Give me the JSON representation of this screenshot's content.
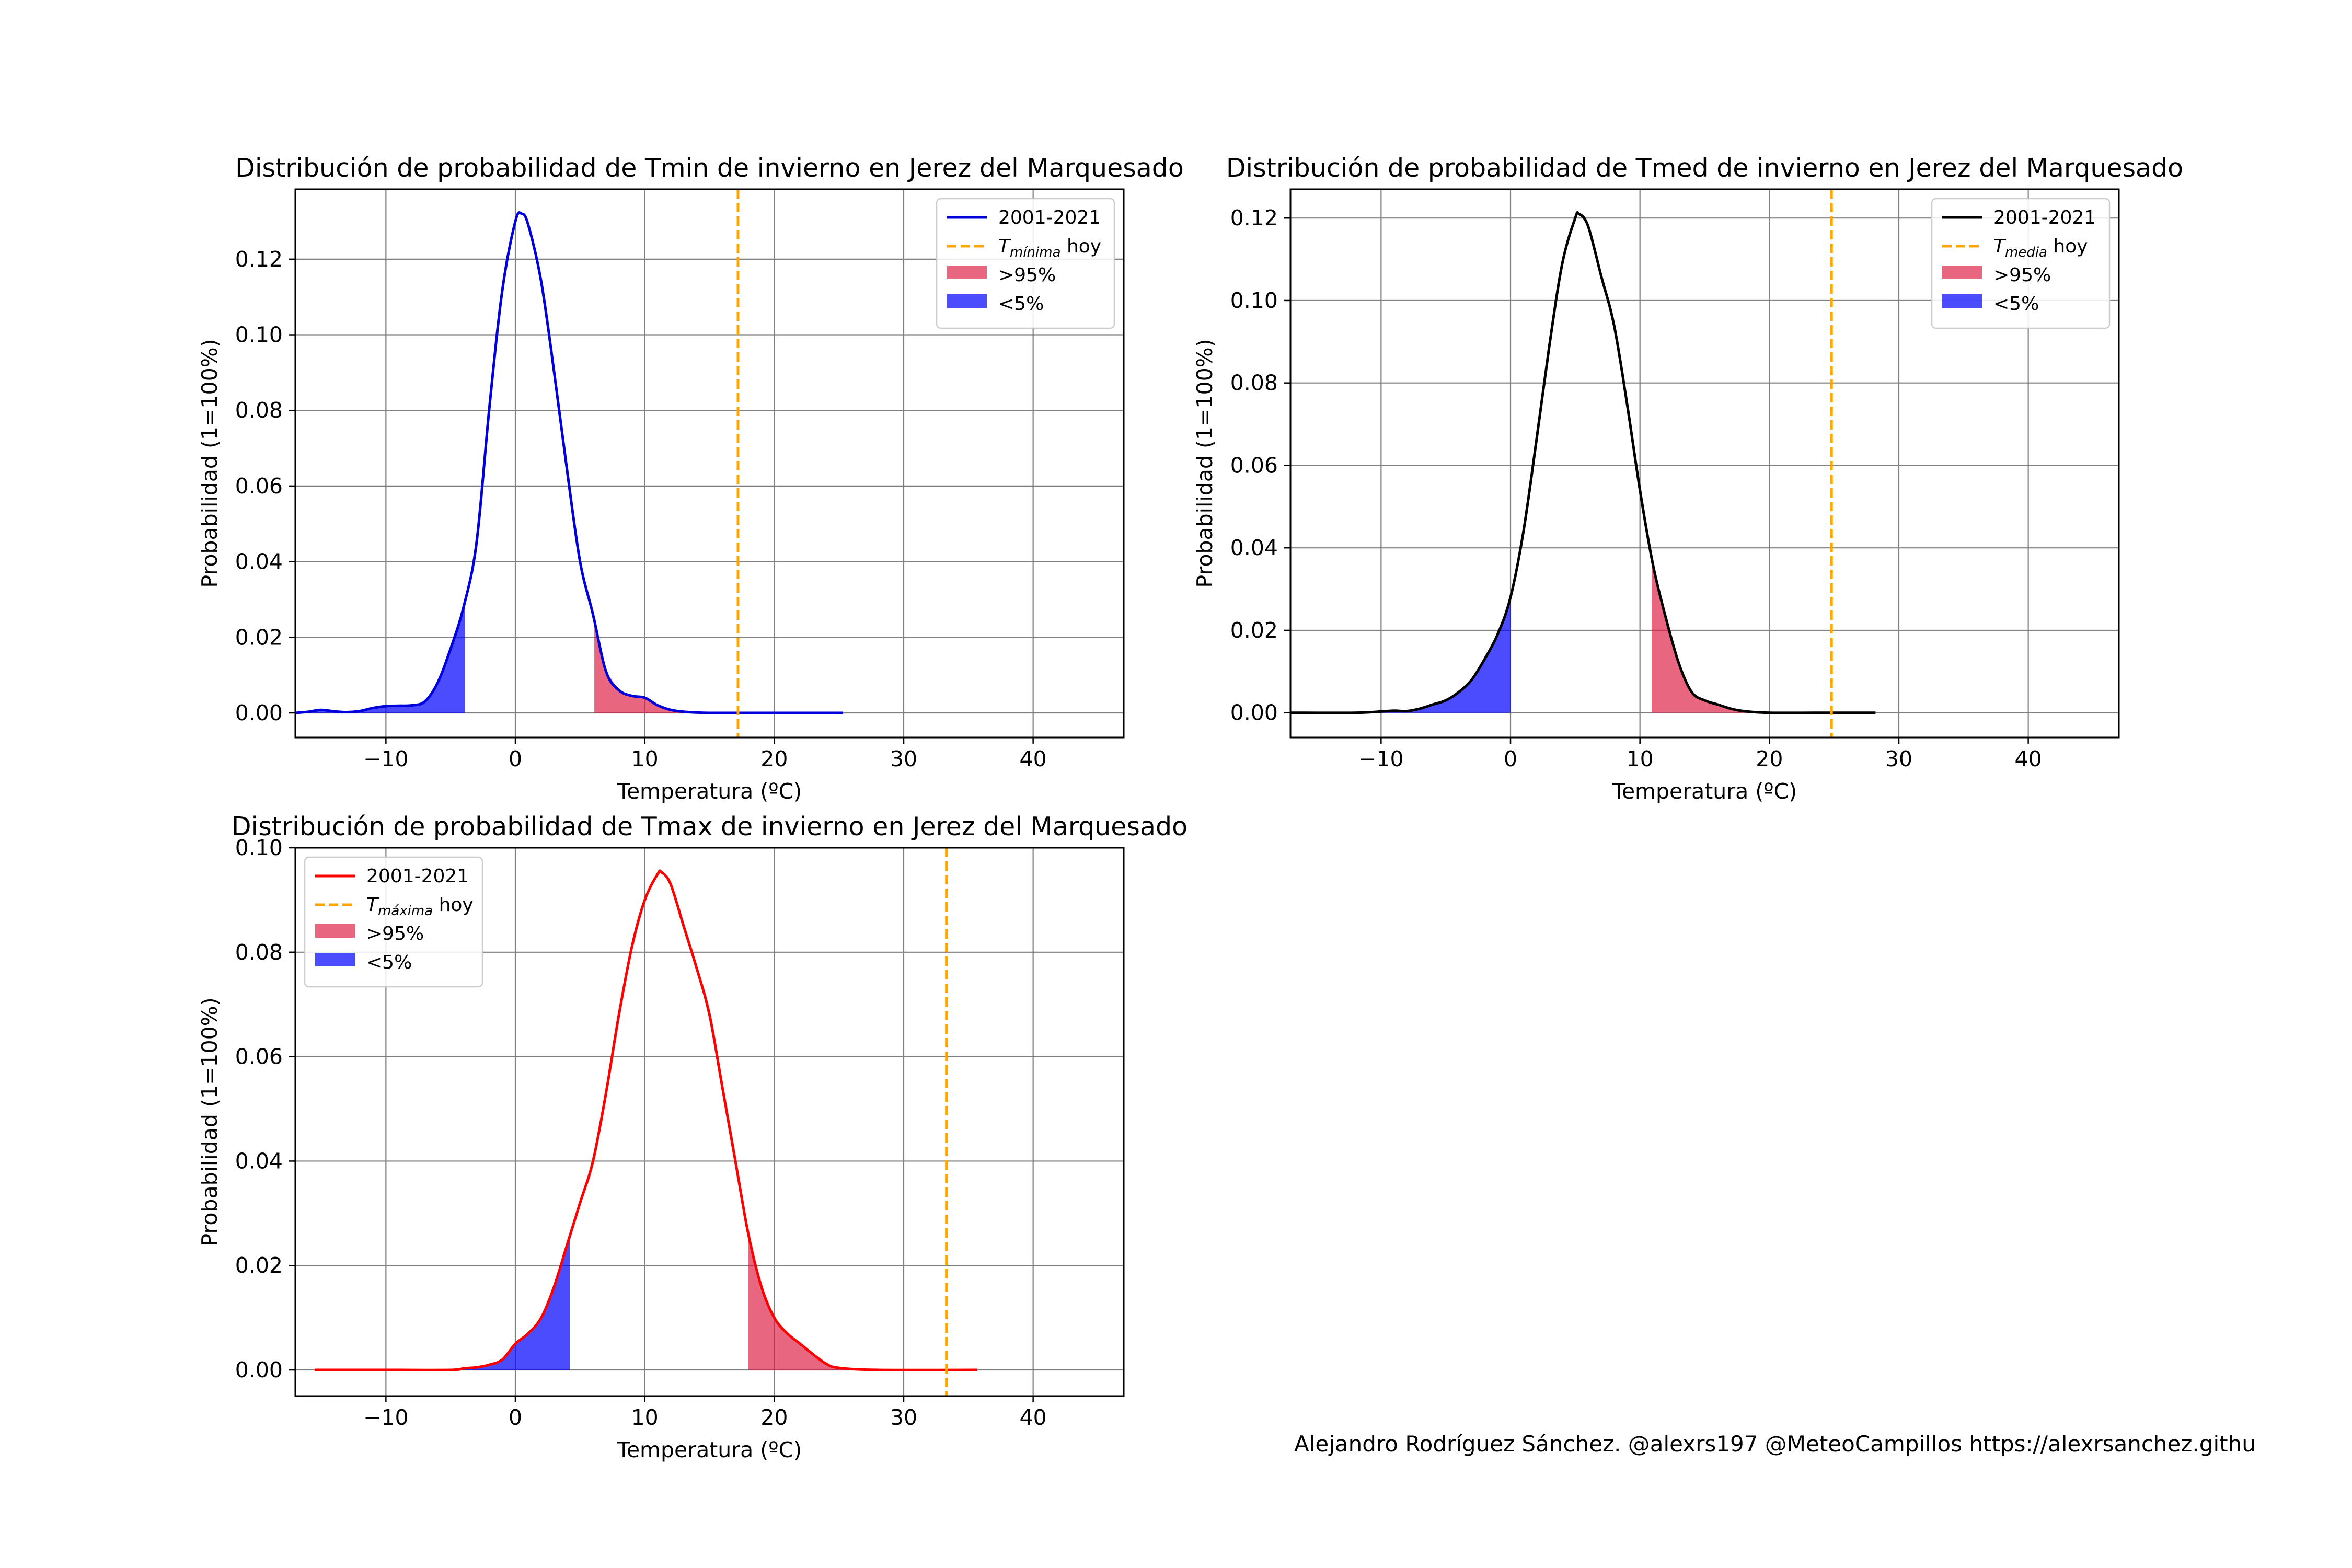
{
  "footer": {
    "credit": "Alejandro Rodríguez Sánchez. @alexrs197 @MeteoCampillos   https://alexrsanchez.githu"
  },
  "colors": {
    "tmin_line": "#0000dd",
    "tmed_line": "#000000",
    "tmax_line": "#ff0000",
    "today_line": "#ffa500",
    "above_95_fill": "#dc143c",
    "below_5_fill": "#0000ff"
  },
  "chart_data": [
    {
      "id": "tmin",
      "type": "area",
      "title": "Distribución de probabilidad de Tmin de invierno en Jerez del Marquesado",
      "xlabel": "Temperatura (ºC)",
      "ylabel": "Probabilidad (1=100%)",
      "xlim": [
        -17,
        47
      ],
      "ylim": [
        -0.0065,
        0.1385
      ],
      "xticks": [
        -10,
        0,
        10,
        20,
        30,
        40
      ],
      "xtick_labels": [
        "−10",
        "0",
        "10",
        "20",
        "30",
        "40"
      ],
      "yticks": [
        0.0,
        0.02,
        0.04,
        0.06,
        0.08,
        0.1,
        0.12
      ],
      "ytick_labels": [
        "0.00",
        "0.02",
        "0.04",
        "0.06",
        "0.08",
        "0.10",
        "0.12"
      ],
      "grid": true,
      "legend_position": "top-right",
      "legend": {
        "series": "2001-2021",
        "today_prefix": "T",
        "today_sub": "mínima",
        "today_suffix": " hoy",
        "above": ">95%",
        "below": "<5%"
      },
      "line_color": "#0000dd",
      "today_value": 17.2,
      "p5": -3.9,
      "p95": 6.1,
      "x": [
        -17,
        -16,
        -15,
        -14,
        -13,
        -12,
        -11,
        -10,
        -9,
        -8,
        -7,
        -6,
        -5,
        -4,
        -3,
        -2,
        -1,
        0,
        0.5,
        1,
        2,
        3,
        4,
        5,
        6,
        7,
        8,
        9,
        10,
        11,
        12,
        13,
        14,
        15,
        17,
        20,
        25.3
      ],
      "y": [
        0.0,
        0.0003,
        0.0008,
        0.0004,
        0.0002,
        0.0005,
        0.0013,
        0.0018,
        0.0019,
        0.002,
        0.003,
        0.008,
        0.017,
        0.028,
        0.045,
        0.081,
        0.112,
        0.13,
        0.132,
        0.129,
        0.114,
        0.09,
        0.064,
        0.04,
        0.026,
        0.011,
        0.006,
        0.0045,
        0.004,
        0.002,
        0.0008,
        0.0003,
        0.0001,
        0.0,
        0.0,
        0.0,
        0.0
      ]
    },
    {
      "id": "tmed",
      "type": "area",
      "title": "Distribución de probabilidad de Tmed de invierno en Jerez del Marquesado",
      "xlabel": "Temperatura (ºC)",
      "ylabel": "Probabilidad (1=100%)",
      "xlim": [
        -17,
        47
      ],
      "ylim": [
        -0.006,
        0.127
      ],
      "xticks": [
        -10,
        0,
        10,
        20,
        30,
        40
      ],
      "xtick_labels": [
        "−10",
        "0",
        "10",
        "20",
        "30",
        "40"
      ],
      "yticks": [
        0.0,
        0.02,
        0.04,
        0.06,
        0.08,
        0.1,
        0.12
      ],
      "ytick_labels": [
        "0.00",
        "0.02",
        "0.04",
        "0.06",
        "0.08",
        "0.10",
        "0.12"
      ],
      "grid": true,
      "legend_position": "top-right",
      "legend": {
        "series": "2001-2021",
        "today_prefix": "T",
        "today_sub": "media",
        "today_suffix": " hoy",
        "above": ">95%",
        "below": "<5%"
      },
      "line_color": "#000000",
      "today_value": 24.8,
      "p5": 0.0,
      "p95": 10.9,
      "x": [
        -17,
        -12,
        -10,
        -9,
        -8,
        -7,
        -6,
        -5,
        -4,
        -3,
        -2,
        -1,
        0,
        1,
        2,
        3,
        4,
        5,
        5.3,
        6,
        7,
        8,
        9,
        10,
        11,
        12,
        13,
        14,
        15,
        16,
        17,
        18,
        20,
        25,
        28.2
      ],
      "y": [
        0.0,
        0.0,
        0.0003,
        0.0005,
        0.0004,
        0.001,
        0.002,
        0.003,
        0.005,
        0.008,
        0.013,
        0.019,
        0.028,
        0.044,
        0.066,
        0.089,
        0.109,
        0.12,
        0.121,
        0.118,
        0.106,
        0.094,
        0.075,
        0.054,
        0.036,
        0.023,
        0.012,
        0.005,
        0.003,
        0.002,
        0.001,
        0.0004,
        0.0,
        0.0,
        0.0
      ]
    },
    {
      "id": "tmax",
      "type": "area",
      "title": "Distribución de probabilidad de Tmax de invierno en Jerez del Marquesado",
      "xlabel": "Temperatura (ºC)",
      "ylabel": "Probabilidad (1=100%)",
      "xlim": [
        -17,
        47
      ],
      "ylim": [
        -0.005,
        0.1
      ],
      "xticks": [
        -10,
        0,
        10,
        20,
        30,
        40
      ],
      "xtick_labels": [
        "−10",
        "0",
        "10",
        "20",
        "30",
        "40"
      ],
      "yticks": [
        0.0,
        0.02,
        0.04,
        0.06,
        0.08,
        0.1
      ],
      "ytick_labels": [
        "0.00",
        "0.02",
        "0.04",
        "0.06",
        "0.08",
        "0.10"
      ],
      "grid": true,
      "legend_position": "top-left",
      "legend": {
        "series": "2001-2021",
        "today_prefix": "T",
        "today_sub": "máxima",
        "today_suffix": " hoy",
        "above": ">95%",
        "below": "<5%"
      },
      "line_color": "#ff0000",
      "today_value": 33.3,
      "p5": 4.2,
      "p95": 18.0,
      "x": [
        -15.5,
        -10,
        -5,
        -4,
        -3,
        -2,
        -1,
        0,
        1,
        2,
        3,
        4,
        5,
        6,
        7,
        8,
        9,
        10,
        11,
        11.3,
        12,
        13,
        14,
        15,
        16,
        17,
        18,
        19,
        20,
        21,
        22,
        23,
        24,
        25,
        28,
        35.7
      ],
      "y": [
        0.0,
        0.0,
        0.0,
        0.0003,
        0.0005,
        0.001,
        0.002,
        0.005,
        0.007,
        0.01,
        0.016,
        0.024,
        0.032,
        0.04,
        0.053,
        0.068,
        0.081,
        0.09,
        0.095,
        0.0953,
        0.093,
        0.085,
        0.077,
        0.068,
        0.054,
        0.04,
        0.026,
        0.016,
        0.01,
        0.007,
        0.005,
        0.003,
        0.0012,
        0.0004,
        0.0,
        0.0
      ]
    }
  ]
}
